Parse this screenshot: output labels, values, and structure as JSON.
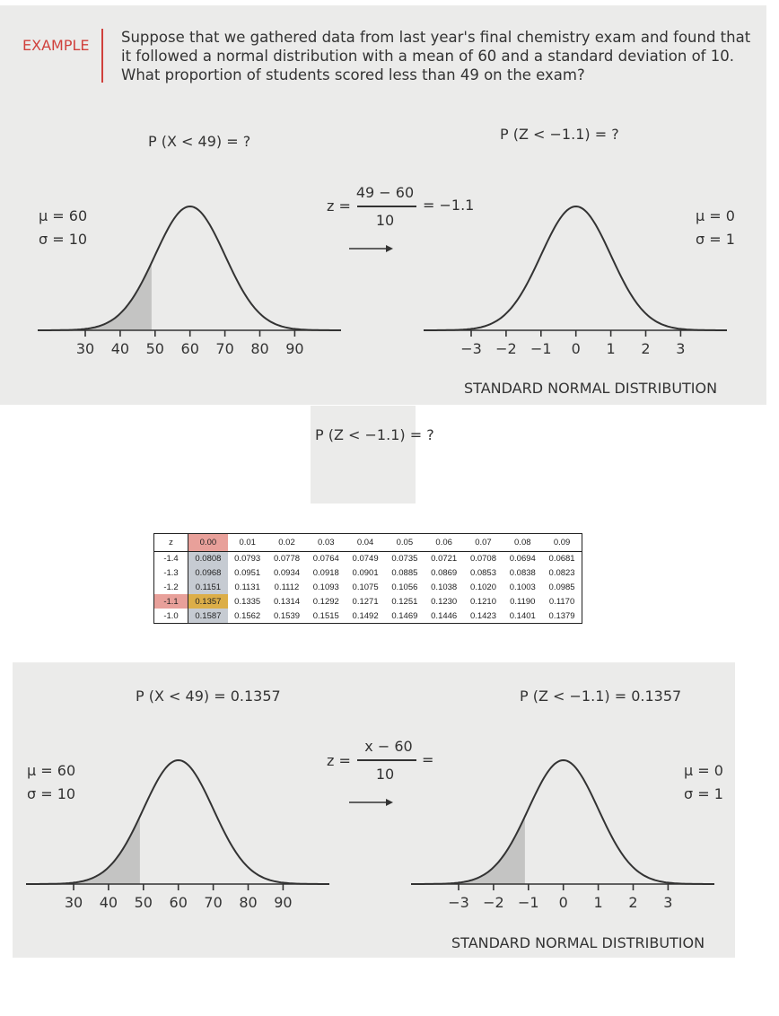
{
  "example": {
    "label": "EXAMPLE",
    "lines": [
      "Suppose that we gathered data from last year's final chemistry exam and found that",
      "it followed a normal distribution with a mean of 60 and a standard deviation of 10.",
      "What proportion of students scored less than 49 on the exam?"
    ]
  },
  "top": {
    "left_prob": "P (X < 49) = ?",
    "right_prob": "P (Z < −1.1) = ?",
    "left_params": [
      "μ = 60",
      "σ = 10"
    ],
    "right_params": [
      "μ = 0",
      "σ = 1"
    ],
    "formula": {
      "z": "z =",
      "numerator": "49  −  60",
      "denominator": "10",
      "result": "=  −1.1"
    },
    "left_ticks": [
      "30",
      "40",
      "50",
      "60",
      "70",
      "80",
      "90"
    ],
    "right_ticks": [
      "−3",
      "−2",
      "−1",
      "0",
      "1",
      "2",
      "3"
    ],
    "caption": "STANDARD NORMAL DISTRIBUTION",
    "left_shade_upto": 49,
    "right_shade_upto": null
  },
  "middle": {
    "prob": "P (Z < −1.1) = ?"
  },
  "ztable": {
    "header": [
      "z",
      "0.00",
      "0.01",
      "0.02",
      "0.03",
      "0.04",
      "0.05",
      "0.06",
      "0.07",
      "0.08",
      "0.09"
    ],
    "rows": [
      [
        "-1.4",
        "0.0808",
        "0.0793",
        "0.0778",
        "0.0764",
        "0.0749",
        "0.0735",
        "0.0721",
        "0.0708",
        "0.0694",
        "0.0681"
      ],
      [
        "-1.3",
        "0.0968",
        "0.0951",
        "0.0934",
        "0.0918",
        "0.0901",
        "0.0885",
        "0.0869",
        "0.0853",
        "0.0838",
        "0.0823"
      ],
      [
        "-1.2",
        "0.1151",
        "0.1131",
        "0.1112",
        "0.1093",
        "0.1075",
        "0.1056",
        "0.1038",
        "0.1020",
        "0.1003",
        "0.0985"
      ],
      [
        "-1.1",
        "0.1357",
        "0.1335",
        "0.1314",
        "0.1292",
        "0.1271",
        "0.1251",
        "0.1230",
        "0.1210",
        "0.1190",
        "0.1170"
      ],
      [
        "-1.0",
        "0.1587",
        "0.1562",
        "0.1539",
        "0.1515",
        "0.1492",
        "0.1469",
        "0.1446",
        "0.1423",
        "0.1401",
        "0.1379"
      ]
    ],
    "highlight_colors": {
      "header": "#e8a09a",
      "column": "#c6cbd2",
      "answer": "#dcae48"
    }
  },
  "bottom": {
    "left_prob": "P (X < 49) = 0.1357",
    "right_prob": "P (Z < −1.1) = 0.1357",
    "left_params": [
      "μ = 60",
      "σ = 10"
    ],
    "right_params": [
      "μ = 0",
      "σ = 1"
    ],
    "formula": {
      "z": "z =",
      "numerator": "x  −  60",
      "denominator": "10",
      "result": "="
    },
    "left_ticks": [
      "30",
      "40",
      "50",
      "60",
      "70",
      "80",
      "90"
    ],
    "right_ticks": [
      "−3",
      "−2",
      "−1",
      "0",
      "1",
      "2",
      "3"
    ],
    "caption": "STANDARD NORMAL DISTRIBUTION",
    "left_shade_upto": 49,
    "right_shade_upto": -1.1
  }
}
